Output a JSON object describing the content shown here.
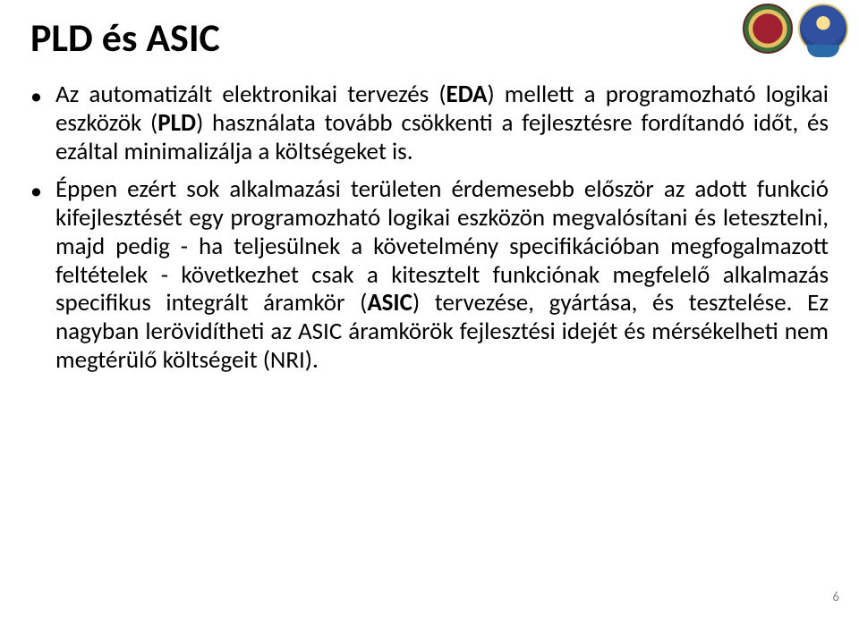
{
  "title": "PLD és ASIC",
  "bullets": [
    {
      "pre": "Az automatizált elektronikai tervezés (",
      "b1": "EDA",
      "mid1": ") mellett a programozható logikai eszközök (",
      "b2": "PLD",
      "post": ") használata tovább csökkenti a fejlesztésre fordítandó időt, és ezáltal minimalizálja a költségeket is."
    },
    {
      "pre": "Éppen ezért sok alkalmazási területen érdemesebb először az adott funkció kifejlesztését egy programozható logikai eszközön megvalósítani és letesztelni, majd pedig - ha teljesülnek a követelmény specifikációban megfogalmazott feltételek - következhet csak a kitesztelt funkciónak megfelelő alkalmazás specifikus integrált áramkör (",
      "b1": "ASIC",
      "mid1": ") tervezése, gyártása, és tesztelése. Ez nagyban lerövidítheti az ASIC áramkörök fejlesztési idejét és mérsékelheti nem megtérülő költségeit (NRI).",
      "b2": "",
      "post": ""
    }
  ],
  "page_number": "6",
  "colors": {
    "text": "#000000",
    "bg": "#ffffff",
    "pagenum": "#888888"
  }
}
